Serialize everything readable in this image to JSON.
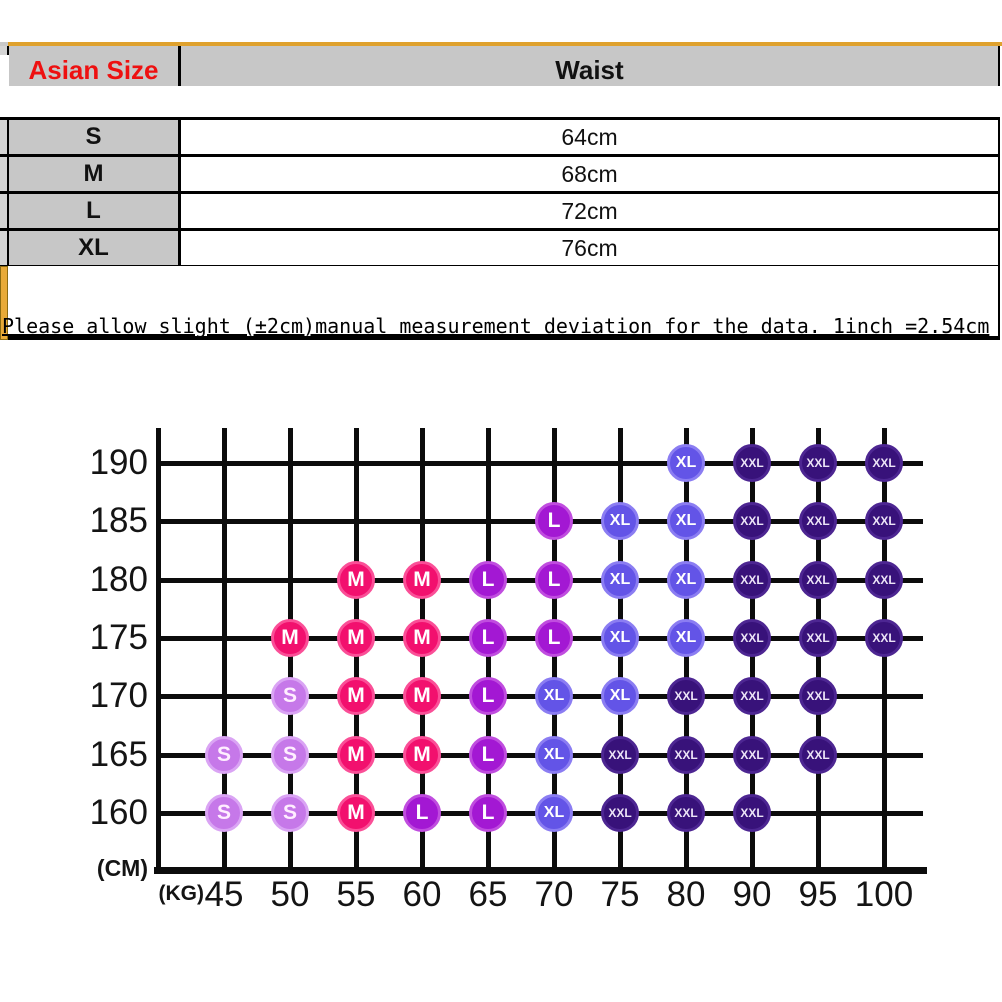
{
  "size_table": {
    "header": {
      "size_col": "Asian Size",
      "waist_col": "Waist"
    },
    "rows": [
      {
        "size": "S",
        "waist": "64cm"
      },
      {
        "size": "M",
        "waist": "68cm"
      },
      {
        "size": "L",
        "waist": "72cm"
      },
      {
        "size": "XL",
        "waist": "76cm"
      }
    ]
  },
  "note": {
    "text": "Please allow slight (±2cm)manual measurement deviation for the data. 1inch =2.54cm"
  },
  "accent_colors": {
    "gold_line": "#dfa12d",
    "header_text_red": "#ee1010",
    "table_gray": "#c7c7c7"
  },
  "chart_data": {
    "type": "scatter",
    "title": "",
    "x_unit_label": "(KG)",
    "y_unit_label": "(CM)",
    "x_ticks": [
      45,
      50,
      55,
      60,
      65,
      70,
      75,
      80,
      90,
      95,
      100
    ],
    "y_ticks": [
      190,
      185,
      180,
      175,
      170,
      165,
      160
    ],
    "grid": true,
    "legend_sizes": [
      "S",
      "M",
      "L",
      "XL",
      "XXL"
    ],
    "size_colors": {
      "S": {
        "fill": "#c678e9",
        "rim": "#daa4f4",
        "text": "#ffeeff",
        "font_px": 21
      },
      "M": {
        "fill": "#f2106e",
        "rim": "#fa4f97",
        "text": "#ffffff",
        "font_px": 21
      },
      "L": {
        "fill": "#a318d3",
        "rim": "#c04ddf",
        "text": "#ffffff",
        "font_px": 21
      },
      "XL": {
        "fill": "#6354e7",
        "rim": "#8b7df2",
        "text": "#ffffff",
        "font_px": 16
      },
      "XXL": {
        "fill": "#38127a",
        "rim": "#4d2692",
        "text": "#ece4f7",
        "font_px": 12
      }
    },
    "points": [
      {
        "cm": 190,
        "kg": 80,
        "size": "XL"
      },
      {
        "cm": 190,
        "kg": 90,
        "size": "XXL"
      },
      {
        "cm": 190,
        "kg": 95,
        "size": "XXL"
      },
      {
        "cm": 190,
        "kg": 100,
        "size": "XXL"
      },
      {
        "cm": 185,
        "kg": 70,
        "size": "L"
      },
      {
        "cm": 185,
        "kg": 75,
        "size": "XL"
      },
      {
        "cm": 185,
        "kg": 80,
        "size": "XL"
      },
      {
        "cm": 185,
        "kg": 90,
        "size": "XXL"
      },
      {
        "cm": 185,
        "kg": 95,
        "size": "XXL"
      },
      {
        "cm": 185,
        "kg": 100,
        "size": "XXL"
      },
      {
        "cm": 180,
        "kg": 55,
        "size": "M"
      },
      {
        "cm": 180,
        "kg": 60,
        "size": "M"
      },
      {
        "cm": 180,
        "kg": 65,
        "size": "L"
      },
      {
        "cm": 180,
        "kg": 70,
        "size": "L"
      },
      {
        "cm": 180,
        "kg": 75,
        "size": "XL"
      },
      {
        "cm": 180,
        "kg": 80,
        "size": "XL"
      },
      {
        "cm": 180,
        "kg": 90,
        "size": "XXL"
      },
      {
        "cm": 180,
        "kg": 95,
        "size": "XXL"
      },
      {
        "cm": 180,
        "kg": 100,
        "size": "XXL"
      },
      {
        "cm": 175,
        "kg": 50,
        "size": "M"
      },
      {
        "cm": 175,
        "kg": 55,
        "size": "M"
      },
      {
        "cm": 175,
        "kg": 60,
        "size": "M"
      },
      {
        "cm": 175,
        "kg": 65,
        "size": "L"
      },
      {
        "cm": 175,
        "kg": 70,
        "size": "L"
      },
      {
        "cm": 175,
        "kg": 75,
        "size": "XL"
      },
      {
        "cm": 175,
        "kg": 80,
        "size": "XL"
      },
      {
        "cm": 175,
        "kg": 90,
        "size": "XXL"
      },
      {
        "cm": 175,
        "kg": 95,
        "size": "XXL"
      },
      {
        "cm": 175,
        "kg": 100,
        "size": "XXL"
      },
      {
        "cm": 170,
        "kg": 50,
        "size": "S"
      },
      {
        "cm": 170,
        "kg": 55,
        "size": "M"
      },
      {
        "cm": 170,
        "kg": 60,
        "size": "M"
      },
      {
        "cm": 170,
        "kg": 65,
        "size": "L"
      },
      {
        "cm": 170,
        "kg": 70,
        "size": "XL"
      },
      {
        "cm": 170,
        "kg": 75,
        "size": "XL"
      },
      {
        "cm": 170,
        "kg": 80,
        "size": "XXL"
      },
      {
        "cm": 170,
        "kg": 90,
        "size": "XXL"
      },
      {
        "cm": 170,
        "kg": 95,
        "size": "XXL"
      },
      {
        "cm": 165,
        "kg": 45,
        "size": "S"
      },
      {
        "cm": 165,
        "kg": 50,
        "size": "S"
      },
      {
        "cm": 165,
        "kg": 55,
        "size": "M"
      },
      {
        "cm": 165,
        "kg": 60,
        "size": "M"
      },
      {
        "cm": 165,
        "kg": 65,
        "size": "L"
      },
      {
        "cm": 165,
        "kg": 70,
        "size": "XL"
      },
      {
        "cm": 165,
        "kg": 75,
        "size": "XXL"
      },
      {
        "cm": 165,
        "kg": 80,
        "size": "XXL"
      },
      {
        "cm": 165,
        "kg": 90,
        "size": "XXL"
      },
      {
        "cm": 165,
        "kg": 95,
        "size": "XXL"
      },
      {
        "cm": 160,
        "kg": 45,
        "size": "S"
      },
      {
        "cm": 160,
        "kg": 50,
        "size": "S"
      },
      {
        "cm": 160,
        "kg": 55,
        "size": "M"
      },
      {
        "cm": 160,
        "kg": 60,
        "size": "L"
      },
      {
        "cm": 160,
        "kg": 65,
        "size": "L"
      },
      {
        "cm": 160,
        "kg": 70,
        "size": "XL"
      },
      {
        "cm": 160,
        "kg": 75,
        "size": "XXL"
      },
      {
        "cm": 160,
        "kg": 80,
        "size": "XXL"
      },
      {
        "cm": 160,
        "kg": 90,
        "size": "XXL"
      }
    ]
  }
}
